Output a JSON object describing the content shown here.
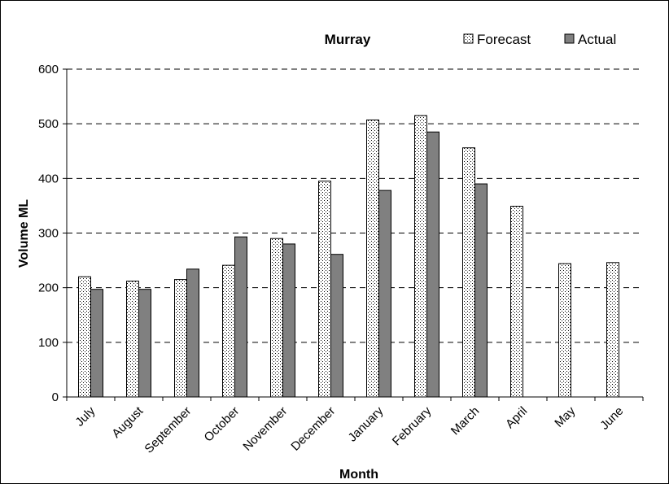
{
  "chart_data": {
    "type": "bar",
    "title": "Murray",
    "xlabel": "Month",
    "ylabel": "Volume ML",
    "ylim": [
      0,
      600
    ],
    "yticks": [
      0,
      100,
      200,
      300,
      400,
      500,
      600
    ],
    "grid": "horizontal dashed",
    "legend_position": "top-right",
    "categories": [
      "July",
      "August",
      "September",
      "October",
      "November",
      "December",
      "January",
      "February",
      "March",
      "April",
      "May",
      "June"
    ],
    "series": [
      {
        "name": "Forecast",
        "pattern": "dotted",
        "color": "#ffffff",
        "values": [
          220,
          212,
          215,
          241,
          290,
          395,
          507,
          515,
          456,
          349,
          244,
          246
        ]
      },
      {
        "name": "Actual",
        "pattern": "solid",
        "color": "#808080",
        "values": [
          197,
          197,
          234,
          293,
          280,
          261,
          378,
          485,
          390,
          null,
          null,
          null
        ]
      }
    ]
  }
}
